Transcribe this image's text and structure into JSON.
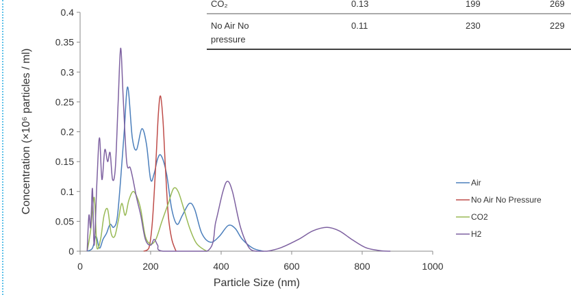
{
  "chart_data": {
    "type": "line",
    "xlabel": "Particle Size (nm)",
    "ylabel": "Concentration (×10⁶ particles / ml)",
    "xlim": [
      0,
      1000
    ],
    "ylim": [
      0,
      0.4
    ],
    "x_ticks": [
      "0",
      "200",
      "400",
      "600",
      "800",
      "1000"
    ],
    "y_ticks": [
      "0",
      "0.05",
      "0.1",
      "0.15",
      "0.2",
      "0.25",
      "0.3",
      "0.35",
      "0.4"
    ],
    "grid": false,
    "legend_position": "right",
    "series": [
      {
        "name": "Air",
        "color": "#4a7ebb",
        "points": [
          [
            20,
            0
          ],
          [
            35,
            0.005
          ],
          [
            45,
            0.025
          ],
          [
            55,
            0.005
          ],
          [
            65,
            0.02
          ],
          [
            75,
            0.03
          ],
          [
            85,
            0.045
          ],
          [
            95,
            0.04
          ],
          [
            105,
            0.055
          ],
          [
            115,
            0.12
          ],
          [
            125,
            0.2
          ],
          [
            135,
            0.275
          ],
          [
            148,
            0.19
          ],
          [
            160,
            0.17
          ],
          [
            175,
            0.205
          ],
          [
            188,
            0.18
          ],
          [
            200,
            0.12
          ],
          [
            210,
            0.13
          ],
          [
            220,
            0.155
          ],
          [
            230,
            0.16
          ],
          [
            245,
            0.13
          ],
          [
            260,
            0.07
          ],
          [
            275,
            0.045
          ],
          [
            290,
            0.06
          ],
          [
            310,
            0.08
          ],
          [
            325,
            0.07
          ],
          [
            345,
            0.03
          ],
          [
            370,
            0.015
          ],
          [
            395,
            0.025
          ],
          [
            420,
            0.043
          ],
          [
            440,
            0.038
          ],
          [
            460,
            0.02
          ],
          [
            490,
            0.005
          ],
          [
            520,
            0
          ]
        ]
      },
      {
        "name": "No Air No Pressure",
        "color": "#be4b48",
        "points": [
          [
            180,
            0
          ],
          [
            195,
            0.005
          ],
          [
            205,
            0.05
          ],
          [
            215,
            0.15
          ],
          [
            222,
            0.23
          ],
          [
            228,
            0.26
          ],
          [
            235,
            0.22
          ],
          [
            242,
            0.14
          ],
          [
            250,
            0.06
          ],
          [
            260,
            0.02
          ],
          [
            272,
            0
          ]
        ]
      },
      {
        "name": "CO2",
        "color": "#98b954",
        "points": [
          [
            20,
            0
          ],
          [
            30,
            0.035
          ],
          [
            40,
            0.09
          ],
          [
            48,
            0.005
          ],
          [
            58,
            0.02
          ],
          [
            68,
            0.06
          ],
          [
            78,
            0.07
          ],
          [
            88,
            0.03
          ],
          [
            98,
            0.025
          ],
          [
            108,
            0.05
          ],
          [
            118,
            0.08
          ],
          [
            128,
            0.06
          ],
          [
            138,
            0.085
          ],
          [
            150,
            0.1
          ],
          [
            162,
            0.09
          ],
          [
            172,
            0.07
          ],
          [
            185,
            0.025
          ],
          [
            200,
            0.012
          ],
          [
            215,
            0.02
          ],
          [
            232,
            0.05
          ],
          [
            250,
            0.08
          ],
          [
            265,
            0.105
          ],
          [
            278,
            0.1
          ],
          [
            292,
            0.075
          ],
          [
            310,
            0.04
          ],
          [
            328,
            0.015
          ],
          [
            345,
            0.005
          ],
          [
            360,
            0
          ]
        ]
      },
      {
        "name": "H2",
        "color": "#7d60a0",
        "points": [
          [
            20,
            0
          ],
          [
            25,
            0.06
          ],
          [
            30,
            0.04
          ],
          [
            35,
            0.105
          ],
          [
            40,
            0.01
          ],
          [
            48,
            0.12
          ],
          [
            55,
            0.19
          ],
          [
            62,
            0.12
          ],
          [
            70,
            0.17
          ],
          [
            78,
            0.15
          ],
          [
            85,
            0.165
          ],
          [
            92,
            0.12
          ],
          [
            100,
            0.14
          ],
          [
            108,
            0.25
          ],
          [
            115,
            0.34
          ],
          [
            122,
            0.26
          ],
          [
            132,
            0.15
          ],
          [
            142,
            0.14
          ],
          [
            150,
            0.12
          ],
          [
            160,
            0.09
          ],
          [
            172,
            0.06
          ],
          [
            185,
            0.02
          ],
          [
            200,
            0.01
          ],
          [
            210,
            0.02
          ],
          [
            220,
            0.01
          ],
          [
            235,
            0
          ],
          [
            360,
            0
          ],
          [
            385,
            0.05
          ],
          [
            405,
            0.1
          ],
          [
            418,
            0.117
          ],
          [
            432,
            0.1
          ],
          [
            455,
            0.04
          ],
          [
            480,
            0.005
          ],
          [
            500,
            0
          ],
          [
            530,
            0
          ],
          [
            570,
            0.006
          ],
          [
            620,
            0.02
          ],
          [
            660,
            0.034
          ],
          [
            700,
            0.04
          ],
          [
            735,
            0.034
          ],
          [
            770,
            0.02
          ],
          [
            810,
            0.006
          ],
          [
            850,
            0.001
          ],
          [
            880,
            0
          ]
        ]
      }
    ]
  },
  "table": {
    "rows": [
      {
        "label_lines": [
          "CO₂"
        ],
        "values": [
          "0.13",
          "199",
          "269"
        ]
      },
      {
        "label_lines": [
          "No Air No",
          "pressure"
        ],
        "values": [
          "0.11",
          "230",
          "229"
        ]
      }
    ]
  }
}
